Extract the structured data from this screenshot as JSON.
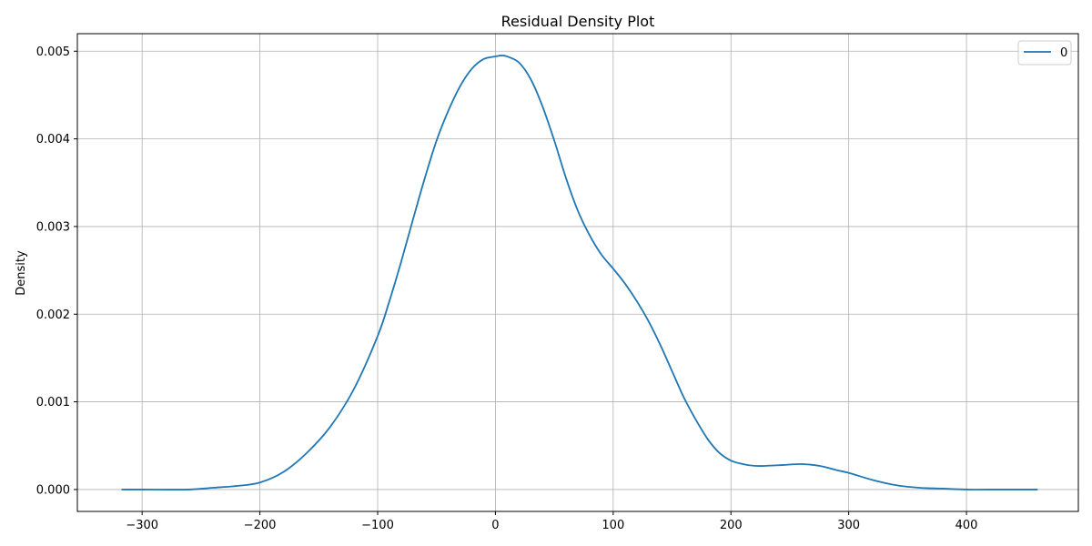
{
  "chart_data": {
    "type": "line",
    "title": "Residual Density Plot",
    "xlabel": "",
    "ylabel": "Density",
    "xlim": [
      -355,
      495
    ],
    "ylim": [
      -0.00025,
      0.0052
    ],
    "x_ticks": [
      -300,
      -200,
      -100,
      0,
      100,
      200,
      300,
      400
    ],
    "x_tick_labels": [
      "−300",
      "−200",
      "−100",
      "0",
      "100",
      "200",
      "300",
      "400"
    ],
    "y_ticks": [
      0,
      0.001,
      0.002,
      0.003,
      0.004,
      0.005
    ],
    "y_tick_labels": [
      "0.000",
      "0.001",
      "0.002",
      "0.003",
      "0.004",
      "0.005"
    ],
    "grid": true,
    "legend_position": "top-right",
    "series": [
      {
        "name": "0",
        "color": "#1f77b4",
        "points": [
          [
            -317,
            0.0
          ],
          [
            -300,
            0.0
          ],
          [
            -260,
            0.0
          ],
          [
            -240,
            2e-05
          ],
          [
            -220,
            4e-05
          ],
          [
            -200,
            8e-05
          ],
          [
            -180,
            0.0002
          ],
          [
            -160,
            0.00042
          ],
          [
            -140,
            0.00072
          ],
          [
            -120,
            0.00115
          ],
          [
            -100,
            0.00175
          ],
          [
            -90,
            0.00215
          ],
          [
            -80,
            0.0026
          ],
          [
            -70,
            0.00308
          ],
          [
            -60,
            0.00355
          ],
          [
            -50,
            0.00398
          ],
          [
            -40,
            0.00432
          ],
          [
            -30,
            0.0046
          ],
          [
            -20,
            0.0048
          ],
          [
            -10,
            0.00491
          ],
          [
            0,
            0.00494
          ],
          [
            5,
            0.00495
          ],
          [
            10,
            0.00494
          ],
          [
            20,
            0.00487
          ],
          [
            30,
            0.00468
          ],
          [
            40,
            0.00437
          ],
          [
            50,
            0.00398
          ],
          [
            60,
            0.00355
          ],
          [
            70,
            0.00318
          ],
          [
            80,
            0.0029
          ],
          [
            90,
            0.00268
          ],
          [
            100,
            0.00252
          ],
          [
            110,
            0.00235
          ],
          [
            120,
            0.00215
          ],
          [
            130,
            0.00192
          ],
          [
            140,
            0.00165
          ],
          [
            150,
            0.00135
          ],
          [
            160,
            0.00105
          ],
          [
            170,
            0.0008
          ],
          [
            180,
            0.00058
          ],
          [
            190,
            0.00042
          ],
          [
            200,
            0.00033
          ],
          [
            210,
            0.00029
          ],
          [
            220,
            0.00027
          ],
          [
            230,
            0.00027
          ],
          [
            245,
            0.00028
          ],
          [
            260,
            0.00029
          ],
          [
            275,
            0.00027
          ],
          [
            290,
            0.00022
          ],
          [
            300,
            0.00019
          ],
          [
            320,
            0.00011
          ],
          [
            340,
            5e-05
          ],
          [
            360,
            2e-05
          ],
          [
            380,
            1e-05
          ],
          [
            400,
            0.0
          ],
          [
            420,
            0.0
          ],
          [
            460,
            0.0
          ]
        ]
      }
    ]
  }
}
